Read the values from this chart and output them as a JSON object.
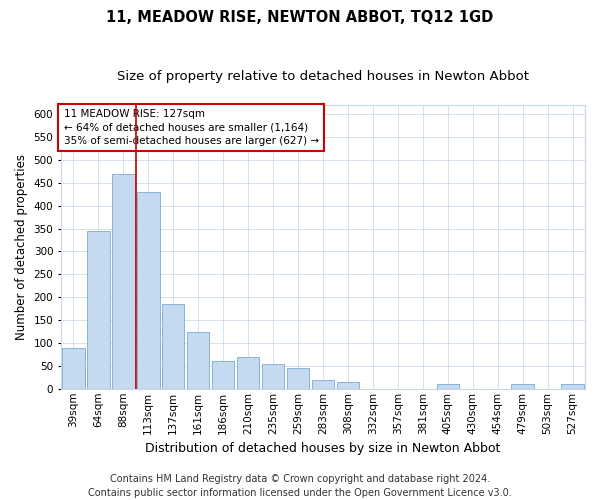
{
  "title": "11, MEADOW RISE, NEWTON ABBOT, TQ12 1GD",
  "subtitle": "Size of property relative to detached houses in Newton Abbot",
  "xlabel": "Distribution of detached houses by size in Newton Abbot",
  "ylabel": "Number of detached properties",
  "footer_line1": "Contains HM Land Registry data © Crown copyright and database right 2024.",
  "footer_line2": "Contains public sector information licensed under the Open Government Licence v3.0.",
  "categories": [
    "39sqm",
    "64sqm",
    "88sqm",
    "113sqm",
    "137sqm",
    "161sqm",
    "186sqm",
    "210sqm",
    "235sqm",
    "259sqm",
    "283sqm",
    "308sqm",
    "332sqm",
    "357sqm",
    "381sqm",
    "405sqm",
    "430sqm",
    "454sqm",
    "479sqm",
    "503sqm",
    "527sqm"
  ],
  "values": [
    90,
    345,
    470,
    430,
    185,
    125,
    60,
    70,
    55,
    45,
    20,
    15,
    0,
    0,
    0,
    10,
    0,
    0,
    10,
    0,
    10
  ],
  "bar_color": "#c5d9f0",
  "bar_edge_color": "#8ab4d8",
  "vline_x": 2.5,
  "vline_color": "#c00000",
  "annotation_text": "11 MEADOW RISE: 127sqm\n← 64% of detached houses are smaller (1,164)\n35% of semi-detached houses are larger (627) →",
  "annotation_box_color": "#ffffff",
  "annotation_box_edge_color": "#cc0000",
  "ylim": [
    0,
    620
  ],
  "yticks": [
    0,
    50,
    100,
    150,
    200,
    250,
    300,
    350,
    400,
    450,
    500,
    550,
    600
  ],
  "background_color": "#ffffff",
  "grid_color": "#c8d4e8",
  "title_fontsize": 10.5,
  "subtitle_fontsize": 9.5,
  "axis_label_fontsize": 8.5,
  "tick_fontsize": 7.5,
  "footer_fontsize": 7
}
